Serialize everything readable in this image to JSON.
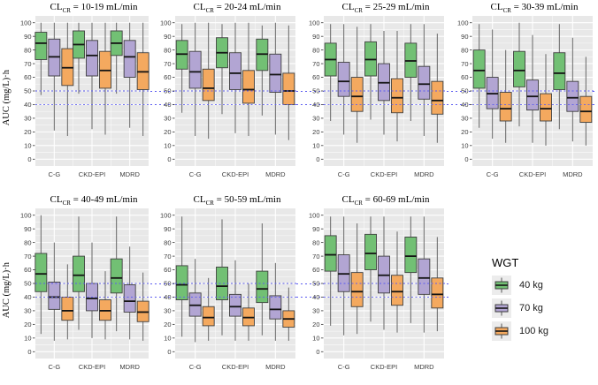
{
  "figure": {
    "legend": {
      "title": "WGT",
      "items": [
        {
          "label": "40 kg",
          "color": "#72c074"
        },
        {
          "label": "70 kg",
          "color": "#b2a5d3"
        },
        {
          "label": "100 kg",
          "color": "#f4a95f"
        }
      ]
    }
  },
  "chart_data": {
    "type": "boxplot",
    "title_parts": {
      "prefix": "CL",
      "sub": "CR",
      "equals": "=",
      "unit": "mL/min"
    },
    "ylabel": "AUC (mg/L)·h",
    "ylim": [
      0,
      100
    ],
    "yticks": [
      0,
      10,
      20,
      30,
      40,
      50,
      60,
      70,
      80,
      90,
      100
    ],
    "categories": [
      "C-G",
      "CKD-EPI",
      "MDRD"
    ],
    "series": [
      "40 kg",
      "70 kg",
      "100 kg"
    ],
    "series_colors": [
      "#72c074",
      "#b2a5d3",
      "#f4a95f"
    ],
    "reference_lines": [
      40,
      50
    ],
    "reference_color": "#5c5cf0",
    "panel_bg": "#e8e8e8",
    "box_stats_format": [
      "whisker_low",
      "q1",
      "median",
      "q3",
      "whisker_high"
    ],
    "panels": [
      {
        "clcr_range": "10-19",
        "groups": {
          "C-G": [
            [
              47,
              73,
              85,
              93,
              100
            ],
            [
              21,
              61,
              75,
              88,
              100
            ],
            [
              17,
              54,
              67,
              81,
              100
            ]
          ],
          "CKD-EPI": [
            [
              48,
              74,
              84,
              94,
              100
            ],
            [
              22,
              61,
              76,
              87,
              100
            ],
            [
              18,
              52,
              65,
              79,
              100
            ]
          ],
          "MDRD": [
            [
              48,
              76,
              85,
              94,
              100
            ],
            [
              23,
              60,
              75,
              87,
              100
            ],
            [
              17,
              51,
              64,
              78,
              100
            ]
          ]
        }
      },
      {
        "clcr_range": "20-24",
        "groups": {
          "C-G": [
            [
              34,
              66,
              77,
              87,
              99
            ],
            [
              17,
              52,
              64,
              79,
              100
            ],
            [
              15,
              43,
              52,
              66,
              100
            ]
          ],
          "CKD-EPI": [
            [
              33,
              67,
              78,
              89,
              99
            ],
            [
              19,
              51,
              63,
              78,
              100
            ],
            [
              17,
              41,
              51,
              65,
              100
            ]
          ],
          "MDRD": [
            [
              32,
              65,
              77,
              88,
              98
            ],
            [
              18,
              49,
              62,
              77,
              100
            ],
            [
              14,
              40,
              50,
              63,
              98
            ]
          ]
        }
      },
      {
        "clcr_range": "25-29",
        "groups": {
          "C-G": [
            [
              28,
              61,
              73,
              85,
              99
            ],
            [
              18,
              46,
              57,
              71,
              99
            ],
            [
              12,
              35,
              46,
              60,
              97
            ]
          ],
          "CKD-EPI": [
            [
              29,
              61,
              73,
              86,
              99
            ],
            [
              18,
              43,
              56,
              70,
              94
            ],
            [
              13,
              34,
              45,
              59,
              94
            ]
          ],
          "MDRD": [
            [
              28,
              60,
              72,
              85,
              99
            ],
            [
              17,
              44,
              55,
              68,
              99
            ],
            [
              12,
              33,
              43,
              57,
              92
            ]
          ]
        }
      },
      {
        "clcr_range": "30-39",
        "groups": {
          "C-G": [
            [
              23,
              52,
              65,
              80,
              99
            ],
            [
              15,
              37,
              48,
              60,
              95
            ],
            [
              12,
              28,
              37,
              49,
              80
            ]
          ],
          "CKD-EPI": [
            [
              24,
              53,
              65,
              79,
              100
            ],
            [
              12,
              36,
              46,
              58,
              91
            ],
            [
              10,
              28,
              37,
              48,
              77
            ]
          ],
          "MDRD": [
            [
              22,
              51,
              63,
              78,
              99
            ],
            [
              13,
              35,
              45,
              57,
              89
            ],
            [
              10,
              27,
              35,
              46,
              75
            ]
          ]
        }
      },
      {
        "clcr_range": "40-49",
        "groups": {
          "C-G": [
            [
              13,
              44,
              57,
              72,
              100
            ],
            [
              8,
              31,
              40,
              51,
              80
            ],
            [
              9,
              23,
              30,
              40,
              64
            ]
          ],
          "CKD-EPI": [
            [
              16,
              44,
              56,
              70,
              99
            ],
            [
              10,
              30,
              39,
              50,
              80
            ],
            [
              9,
              23,
              30,
              38,
              59
            ]
          ],
          "MDRD": [
            [
              15,
              43,
              54,
              68,
              99
            ],
            [
              9,
              29,
              37,
              49,
              77
            ],
            [
              8,
              22,
              29,
              37,
              58
            ]
          ]
        }
      },
      {
        "clcr_range": "50-59",
        "groups": {
          "C-G": [
            [
              11,
              38,
              49,
              63,
              99
            ],
            [
              7,
              26,
              34,
              43,
              68
            ],
            [
              8,
              19,
              25,
              33,
              54
            ]
          ],
          "CKD-EPI": [
            [
              12,
              38,
              48,
              62,
              97
            ],
            [
              8,
              26,
              33,
              42,
              67
            ],
            [
              8,
              19,
              25,
              32,
              50
            ]
          ],
          "MDRD": [
            [
              12,
              36,
              46,
              59,
              94
            ],
            [
              8,
              24,
              31,
              41,
              65
            ],
            [
              8,
              18,
              24,
              30,
              47
            ]
          ]
        }
      },
      {
        "clcr_range": "60-69",
        "groups": {
          "C-G": [
            [
              19,
              59,
              71,
              85,
              99
            ],
            [
              12,
              44,
              57,
              71,
              99
            ],
            [
              13,
              33,
              44,
              58,
              94
            ]
          ],
          "CKD-EPI": [
            [
              22,
              60,
              72,
              86,
              99
            ],
            [
              16,
              43,
              56,
              70,
              99
            ],
            [
              14,
              34,
              44,
              56,
              88
            ]
          ],
          "MDRD": [
            [
              21,
              58,
              70,
              84,
              99
            ],
            [
              14,
              42,
              54,
              68,
              99
            ],
            [
              15,
              32,
              42,
              54,
              84
            ]
          ]
        }
      }
    ]
  }
}
